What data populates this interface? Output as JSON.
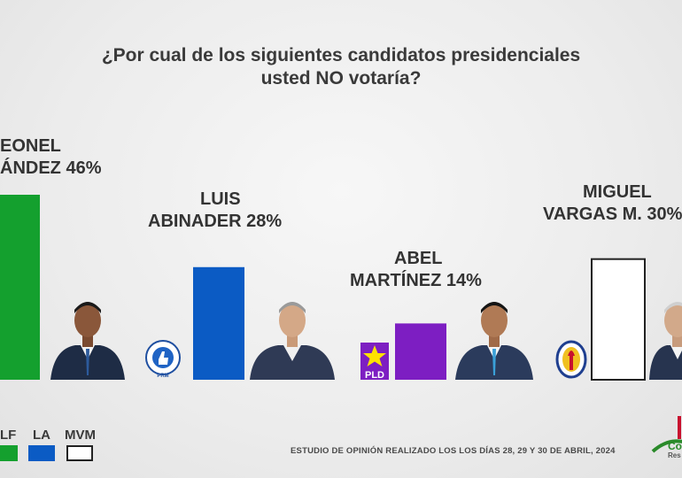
{
  "title_line1": "¿Por cual de los siguientes candidatos presidenciales",
  "title_line2": "usted NO votaría?",
  "colors": {
    "LF": "#14a02e",
    "LA": "#0b5bc4",
    "AM": "#7d1ec2",
    "MVM": "#ffffff"
  },
  "candidates": [
    {
      "line1": "EONEL",
      "line2": "ÁNDEZ 46%"
    },
    {
      "line1": "LUIS",
      "line2": "ABINADER  28%"
    },
    {
      "line1": "ABEL",
      "line2": "MARTÍNEZ 14%"
    },
    {
      "line1": "MIGUEL",
      "line2": "VARGAS M. 30%"
    }
  ],
  "party_logos": {
    "pld_text": "PLD",
    "prm_text": "PRM"
  },
  "legend": [
    {
      "label": "LF",
      "color": "#14a02e"
    },
    {
      "label": "LA",
      "color": "#0b5bc4"
    },
    {
      "label": "MVM",
      "color": "#ffffff"
    }
  ],
  "footnote": "ESTUDIO DE OPINIÓN REALIZADO LOS LOS DÍAS 28, 29 Y 30 DE ABRIL, 2024",
  "corner_brand": {
    "line1": "Co",
    "line2": "Res"
  },
  "chart_data": {
    "type": "bar",
    "title": "¿Por cual de los siguientes candidatos presidenciales usted NO votaría?",
    "categories": [
      "Leonel Fernández",
      "Luis Abinader",
      "Abel Martínez",
      "Miguel Vargas M."
    ],
    "values": [
      46,
      28,
      14,
      30
    ],
    "unit": "%",
    "colors": [
      "#14a02e",
      "#0b5bc4",
      "#7d1ec2",
      "#ffffff"
    ],
    "legend_position": "bottom-left",
    "grid": false
  }
}
